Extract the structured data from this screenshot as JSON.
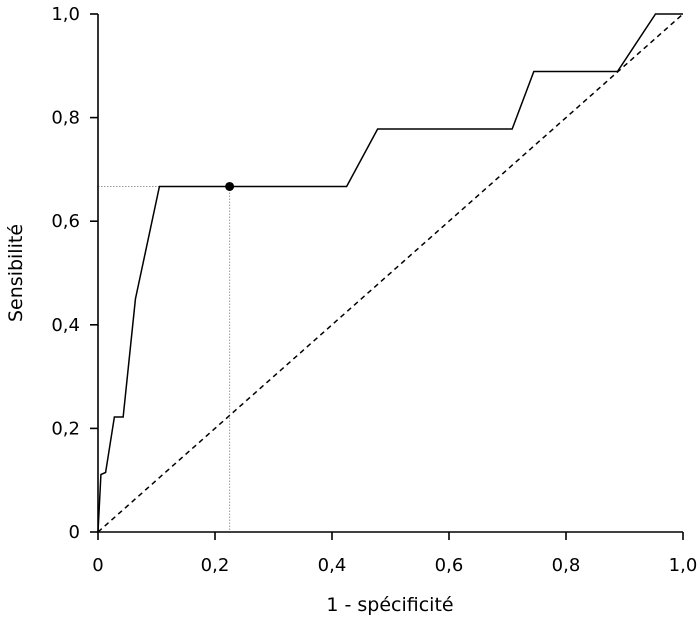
{
  "chart_data": {
    "type": "line",
    "title": "",
    "xlabel": "1 - spécificité",
    "ylabel": "Sensibilité",
    "xlim": [
      0,
      1
    ],
    "ylim": [
      0,
      1
    ],
    "grid": false,
    "legend": "none",
    "x_ticks": [
      {
        "value": 0,
        "label": "0"
      },
      {
        "value": 0.2,
        "label": "0,2"
      },
      {
        "value": 0.4,
        "label": "0,4"
      },
      {
        "value": 0.6,
        "label": "0,6"
      },
      {
        "value": 0.8,
        "label": "0,8"
      },
      {
        "value": 1.0,
        "label": "1,0"
      }
    ],
    "y_ticks": [
      {
        "value": 0,
        "label": "0"
      },
      {
        "value": 0.2,
        "label": "0,2"
      },
      {
        "value": 0.4,
        "label": "0,4"
      },
      {
        "value": 0.6,
        "label": "0,6"
      },
      {
        "value": 0.8,
        "label": "0,8"
      },
      {
        "value": 1.0,
        "label": "1,0"
      }
    ],
    "series": [
      {
        "style": "solid",
        "color": "#000000",
        "x": [
          0,
          0.005,
          0.013,
          0.028,
          0.043,
          0.064,
          0.105,
          0.425,
          0.478,
          0.708,
          0.745,
          0.888,
          0.953,
          1.0
        ],
        "y": [
          0,
          0.111,
          0.115,
          0.222,
          0.222,
          0.45,
          0.667,
          0.667,
          0.778,
          0.778,
          0.889,
          0.889,
          1.0,
          1.0
        ]
      },
      {
        "style": "dashed",
        "color": "#000000",
        "x": [
          0,
          1
        ],
        "y": [
          0,
          1
        ]
      }
    ],
    "highlight_point": {
      "x": 0.225,
      "y": 0.667,
      "color": "#000000"
    },
    "guide_line_color": "#999999"
  }
}
